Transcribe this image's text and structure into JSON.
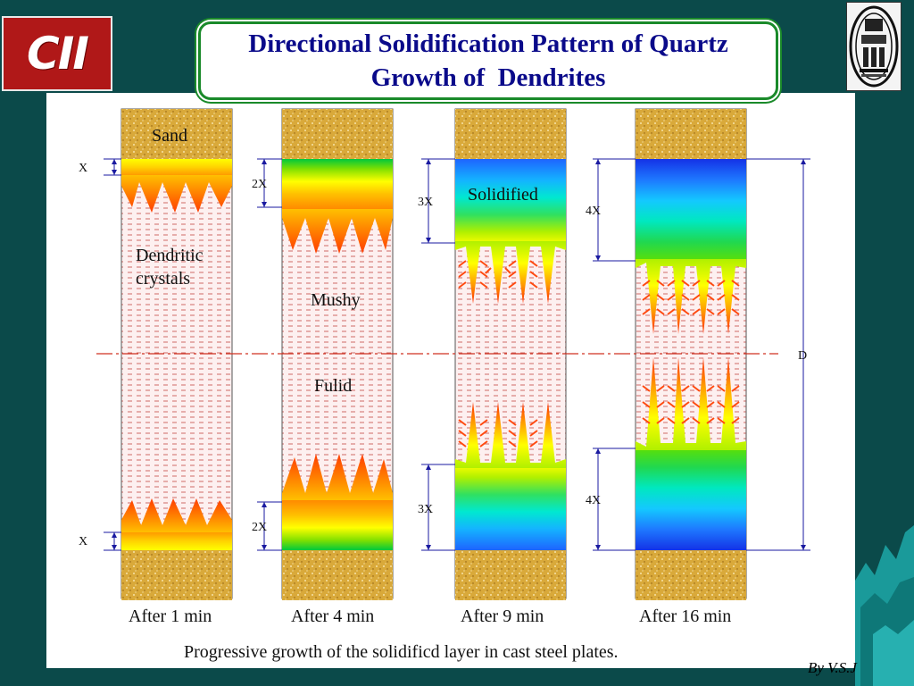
{
  "title": {
    "line1": "Directional Solidification Pattern of Quartz",
    "line2": "Growth of  Dendrites"
  },
  "logo_left": {
    "text": "CII",
    "icon": "cii-logo-icon"
  },
  "logo_right": {
    "icon": "institute-emblem-icon"
  },
  "diagram": {
    "labels": {
      "sand": "Sand",
      "dendritic": "Dendritic",
      "crystals": "crystals",
      "mushy": "Mushy",
      "fluid": "Fulid",
      "solidified": "Solidified",
      "d": "D"
    },
    "columns": [
      {
        "caption": "After 1 min",
        "dim_top": "X",
        "dim_bottom": "X"
      },
      {
        "caption": "After 4 min",
        "dim_top": "2X",
        "dim_bottom": "2X"
      },
      {
        "caption": "After 9 min",
        "dim_top": "3X",
        "dim_bottom": "3X"
      },
      {
        "caption": "After 16 min",
        "dim_top": "4X",
        "dim_bottom": "4X"
      }
    ],
    "caption": "Progressive growth of the solidificd layer in cast steel plates."
  },
  "author": "By  V.S.J",
  "colors": {
    "background": "#0b4a4a",
    "title_text": "#0a0a8a",
    "title_border": "#1a8a2a",
    "sand": "#d9a93a",
    "fluid_dash": "#c0504d",
    "centerline": "#d03020"
  }
}
